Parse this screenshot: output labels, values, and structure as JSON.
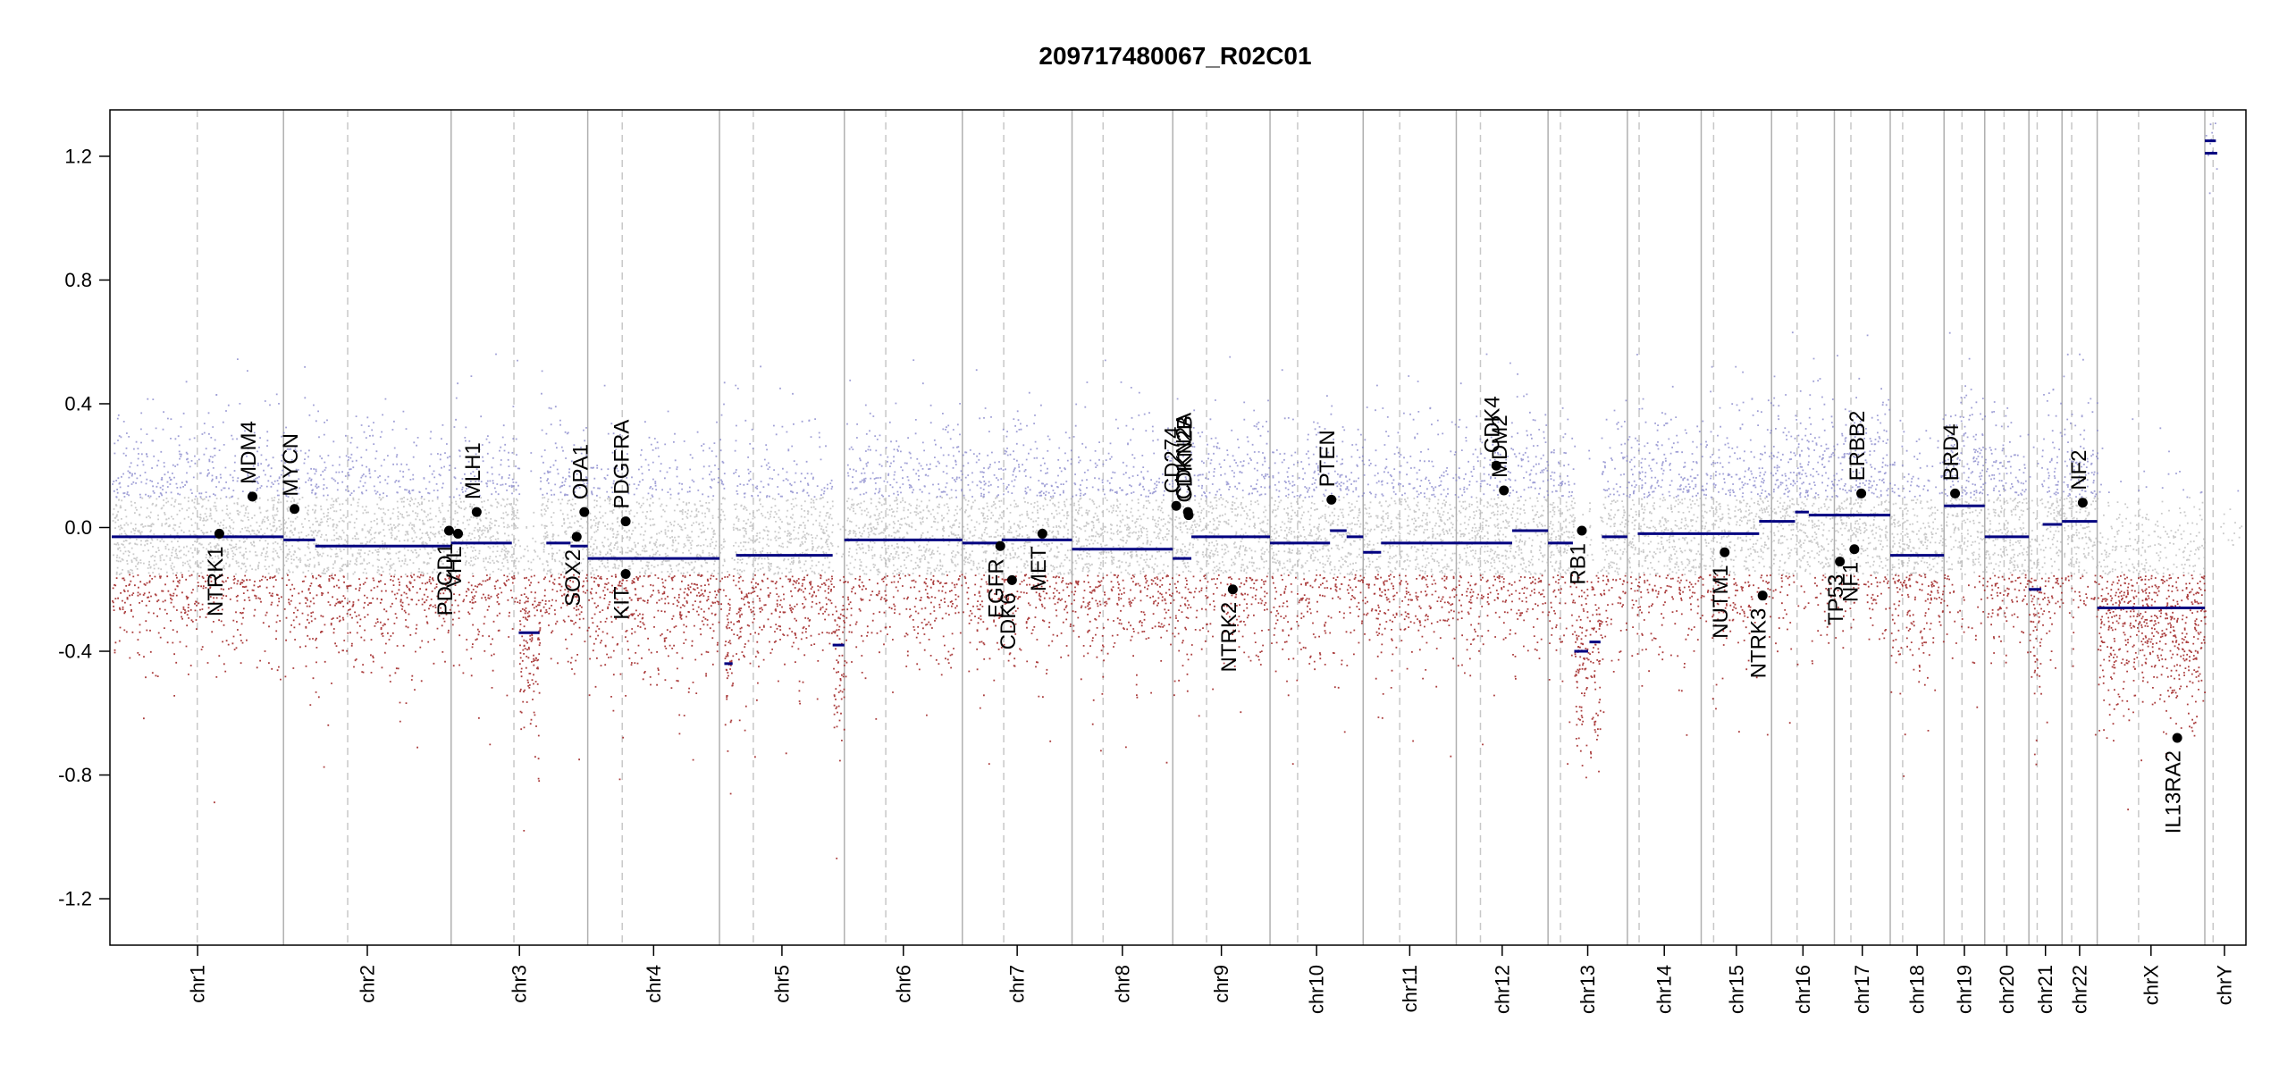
{
  "chart_data": {
    "type": "scatter",
    "title": "209717480067_R02C01",
    "xlabel": "",
    "ylabel": "",
    "ylim": [
      -1.35,
      1.35
    ],
    "y_ticks": [
      "1.2",
      "0.8",
      "0.4",
      "0.0",
      "-0.4",
      "-0.8",
      "-1.2"
    ],
    "y_tick_values": [
      1.2,
      0.8,
      0.4,
      0.0,
      -0.4,
      -0.8,
      -1.2
    ],
    "grid": "vertical chromosome boundaries (solid) and centromeres (dashed)",
    "colors": {
      "gain": "#8080c8",
      "neutral": "#b4b4b4",
      "loss": "#9c1c1c",
      "segment": "#000080",
      "gene_point": "#000000",
      "boundary": "#b0b0b0",
      "centromere": "#c8c8c8"
    },
    "chromosomes": [
      {
        "name": "chr1",
        "start": 0,
        "end": 249,
        "centromere": 124,
        "sd": 0.17
      },
      {
        "name": "chr2",
        "start": 249,
        "end": 492,
        "centromere": 342,
        "sd": 0.17
      },
      {
        "name": "chr3",
        "start": 492,
        "end": 690,
        "centromere": 583,
        "sd": 0.17
      },
      {
        "name": "chr4",
        "start": 690,
        "end": 881,
        "centromere": 740,
        "sd": 0.17
      },
      {
        "name": "chr5",
        "start": 881,
        "end": 1062,
        "centromere": 930,
        "sd": 0.17
      },
      {
        "name": "chr6",
        "start": 1062,
        "end": 1233,
        "centromere": 1122,
        "sd": 0.17
      },
      {
        "name": "chr7",
        "start": 1233,
        "end": 1392,
        "centromere": 1293,
        "sd": 0.17
      },
      {
        "name": "chr8",
        "start": 1392,
        "end": 1538,
        "centromere": 1437,
        "sd": 0.17
      },
      {
        "name": "chr9",
        "start": 1538,
        "end": 1679,
        "centromere": 1587,
        "sd": 0.17
      },
      {
        "name": "chr10",
        "start": 1679,
        "end": 1814,
        "centromere": 1719,
        "sd": 0.17
      },
      {
        "name": "chr11",
        "start": 1814,
        "end": 1949,
        "centromere": 1867,
        "sd": 0.17
      },
      {
        "name": "chr12",
        "start": 1949,
        "end": 2082,
        "centromere": 1984,
        "sd": 0.17
      },
      {
        "name": "chr13",
        "start": 2082,
        "end": 2197,
        "centromere": 2100,
        "sd": 0.17
      },
      {
        "name": "chr14",
        "start": 2197,
        "end": 2304,
        "centromere": 2214,
        "sd": 0.17
      },
      {
        "name": "chr15",
        "start": 2304,
        "end": 2406,
        "centromere": 2322,
        "sd": 0.17
      },
      {
        "name": "chr16",
        "start": 2406,
        "end": 2497,
        "centromere": 2443,
        "sd": 0.17
      },
      {
        "name": "chr17",
        "start": 2497,
        "end": 2578,
        "centromere": 2521,
        "sd": 0.17
      },
      {
        "name": "chr18",
        "start": 2578,
        "end": 2656,
        "centromere": 2596,
        "sd": 0.17
      },
      {
        "name": "chr19",
        "start": 2656,
        "end": 2715,
        "centromere": 2682,
        "sd": 0.17
      },
      {
        "name": "chr20",
        "start": 2715,
        "end": 2779,
        "centromere": 2743,
        "sd": 0.17
      },
      {
        "name": "chr21",
        "start": 2779,
        "end": 2827,
        "centromere": 2791,
        "sd": 0.17
      },
      {
        "name": "chr22",
        "start": 2827,
        "end": 2878,
        "centromere": 2841,
        "sd": 0.17
      },
      {
        "name": "chrX",
        "start": 2878,
        "end": 3034,
        "centromere": 2938,
        "sd": 0.17
      },
      {
        "name": "chrY",
        "start": 3034,
        "end": 3091,
        "centromere": 3046,
        "sd": 0.05
      }
    ],
    "segments": [
      {
        "start": 0,
        "end": 249,
        "y": -0.03
      },
      {
        "start": 249,
        "end": 295,
        "y": -0.04
      },
      {
        "start": 295,
        "end": 492,
        "y": -0.06
      },
      {
        "start": 492,
        "end": 580,
        "y": -0.05
      },
      {
        "start": 590,
        "end": 620,
        "y": -0.34
      },
      {
        "start": 630,
        "end": 665,
        "y": -0.05
      },
      {
        "start": 665,
        "end": 690,
        "y": -0.06
      },
      {
        "start": 690,
        "end": 881,
        "y": -0.1
      },
      {
        "start": 888,
        "end": 900,
        "y": -0.44
      },
      {
        "start": 905,
        "end": 1045,
        "y": -0.09
      },
      {
        "start": 1045,
        "end": 1062,
        "y": -0.38
      },
      {
        "start": 1062,
        "end": 1233,
        "y": -0.04
      },
      {
        "start": 1233,
        "end": 1290,
        "y": -0.05
      },
      {
        "start": 1290,
        "end": 1392,
        "y": -0.04
      },
      {
        "start": 1392,
        "end": 1538,
        "y": -0.07
      },
      {
        "start": 1538,
        "end": 1565,
        "y": -0.1
      },
      {
        "start": 1565,
        "end": 1679,
        "y": -0.03
      },
      {
        "start": 1679,
        "end": 1766,
        "y": -0.05
      },
      {
        "start": 1766,
        "end": 1790,
        "y": -0.01
      },
      {
        "start": 1790,
        "end": 1814,
        "y": -0.03
      },
      {
        "start": 1814,
        "end": 1840,
        "y": -0.08
      },
      {
        "start": 1840,
        "end": 1949,
        "y": -0.05
      },
      {
        "start": 1949,
        "end": 2030,
        "y": -0.05
      },
      {
        "start": 2030,
        "end": 2082,
        "y": -0.01
      },
      {
        "start": 2082,
        "end": 2118,
        "y": -0.05
      },
      {
        "start": 2120,
        "end": 2140,
        "y": -0.4
      },
      {
        "start": 2142,
        "end": 2158,
        "y": -0.37
      },
      {
        "start": 2160,
        "end": 2197,
        "y": -0.03
      },
      {
        "start": 2212,
        "end": 2304,
        "y": -0.02
      },
      {
        "start": 2304,
        "end": 2388,
        "y": -0.02
      },
      {
        "start": 2388,
        "end": 2406,
        "y": 0.02
      },
      {
        "start": 2406,
        "end": 2440,
        "y": 0.02
      },
      {
        "start": 2440,
        "end": 2460,
        "y": 0.05
      },
      {
        "start": 2460,
        "end": 2497,
        "y": 0.04
      },
      {
        "start": 2497,
        "end": 2578,
        "y": 0.04
      },
      {
        "start": 2578,
        "end": 2656,
        "y": -0.09
      },
      {
        "start": 2656,
        "end": 2715,
        "y": 0.07
      },
      {
        "start": 2715,
        "end": 2779,
        "y": -0.03
      },
      {
        "start": 2779,
        "end": 2797,
        "y": -0.2
      },
      {
        "start": 2799,
        "end": 2827,
        "y": 0.01
      },
      {
        "start": 2827,
        "end": 2878,
        "y": 0.02
      },
      {
        "start": 2878,
        "end": 3034,
        "y": -0.26
      },
      {
        "start": 3034,
        "end": 3050,
        "y": 1.25
      },
      {
        "start": 3034,
        "end": 3052,
        "y": 1.21
      }
    ],
    "genes": [
      {
        "name": "NTRK1",
        "x": 156,
        "y": -0.02,
        "label_pos": "below"
      },
      {
        "name": "MDM4",
        "x": 204,
        "y": 0.1,
        "label_pos": "above"
      },
      {
        "name": "MYCN",
        "x": 265,
        "y": 0.06,
        "label_pos": "above"
      },
      {
        "name": "PDCD1",
        "x": 489,
        "y": -0.01,
        "label_pos": "below"
      },
      {
        "name": "VHL",
        "x": 502,
        "y": -0.02,
        "label_pos": "below"
      },
      {
        "name": "MLH1",
        "x": 529,
        "y": 0.05,
        "label_pos": "above"
      },
      {
        "name": "SOX2",
        "x": 674,
        "y": -0.03,
        "label_pos": "below"
      },
      {
        "name": "OPA1",
        "x": 685,
        "y": 0.05,
        "label_pos": "above"
      },
      {
        "name": "PDGFRA",
        "x": 745,
        "y": 0.02,
        "label_pos": "above"
      },
      {
        "name": "KIT",
        "x": 745,
        "y": -0.15,
        "label_pos": "below"
      },
      {
        "name": "EGFR",
        "x": 1288,
        "y": -0.06,
        "label_pos": "below"
      },
      {
        "name": "CDK6",
        "x": 1305,
        "y": -0.17,
        "label_pos": "below"
      },
      {
        "name": "MET",
        "x": 1349,
        "y": -0.02,
        "label_pos": "below"
      },
      {
        "name": "CD274",
        "x": 1543,
        "y": 0.07,
        "label_pos": "above"
      },
      {
        "name": "CDKN2A",
        "x": 1560,
        "y": 0.05,
        "label_pos": "above"
      },
      {
        "name": "CDKN2B",
        "x": 1561,
        "y": 0.04,
        "label_pos": "above"
      },
      {
        "name": "NTRK2",
        "x": 1625,
        "y": -0.2,
        "label_pos": "below"
      },
      {
        "name": "PTEN",
        "x": 1768,
        "y": 0.09,
        "label_pos": "above"
      },
      {
        "name": "CDK4",
        "x": 2007,
        "y": 0.2,
        "label_pos": "above"
      },
      {
        "name": "MDM2",
        "x": 2018,
        "y": 0.12,
        "label_pos": "above"
      },
      {
        "name": "RB1",
        "x": 2131,
        "y": -0.01,
        "label_pos": "below"
      },
      {
        "name": "NUTM1",
        "x": 2338,
        "y": -0.08,
        "label_pos": "below"
      },
      {
        "name": "NTRK3",
        "x": 2393,
        "y": -0.22,
        "label_pos": "below"
      },
      {
        "name": "TP53",
        "x": 2505,
        "y": -0.11,
        "label_pos": "below"
      },
      {
        "name": "NF1",
        "x": 2526,
        "y": -0.07,
        "label_pos": "below"
      },
      {
        "name": "ERBB2",
        "x": 2536,
        "y": 0.11,
        "label_pos": "above"
      },
      {
        "name": "BRD4",
        "x": 2672,
        "y": 0.11,
        "label_pos": "above"
      },
      {
        "name": "NF2",
        "x": 2857,
        "y": 0.08,
        "label_pos": "above"
      },
      {
        "name": "IL13RA2",
        "x": 2994,
        "y": -0.68,
        "label_pos": "below"
      }
    ]
  }
}
